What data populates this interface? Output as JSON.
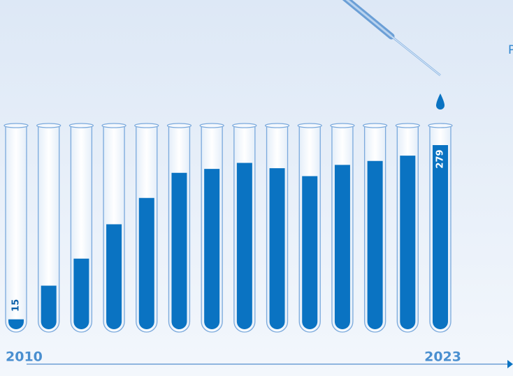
{
  "chart_data": {
    "type": "test-tube-bar",
    "categories": [
      "2010",
      null,
      null,
      null,
      null,
      null,
      null,
      null,
      null,
      null,
      null,
      null,
      null,
      "2023"
    ],
    "values": [
      15,
      66,
      107,
      159,
      199,
      237,
      243,
      252,
      244,
      232,
      249,
      255,
      263,
      279
    ],
    "value_labels": [
      "15",
      null,
      null,
      null,
      null,
      null,
      null,
      null,
      null,
      null,
      null,
      null,
      null,
      "279"
    ],
    "color": "#0a73c2",
    "annotation": "P"
  }
}
